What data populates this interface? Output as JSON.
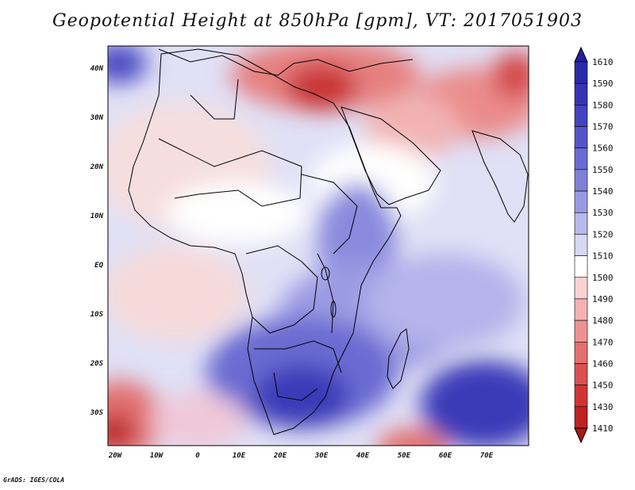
{
  "title": "Geopotential Height at 850hPa [gpm], VT: 2017051903",
  "credit": "GrADS: IGES/COLA",
  "latitudes": [
    "40N",
    "30N",
    "20N",
    "10N",
    "EQ",
    "10S",
    "20S",
    "30S"
  ],
  "longitudes": [
    "20W",
    "10W",
    "0",
    "10E",
    "20E",
    "30E",
    "40E",
    "50E",
    "60E",
    "70E"
  ],
  "colorbar": {
    "levels": [
      "1610",
      "1590",
      "1580",
      "1570",
      "1560",
      "1550",
      "1540",
      "1530",
      "1520",
      "1510",
      "1500",
      "1490",
      "1480",
      "1470",
      "1460",
      "1450",
      "1430",
      "1410"
    ],
    "colors": [
      "#2222a0",
      "#2a2aaa",
      "#3535b5",
      "#4343c0",
      "#5555c9",
      "#6a6ad2",
      "#8080da",
      "#9a9ae3",
      "#b8b8ec",
      "#d8d8f5",
      "#ffffff",
      "#f9d3d3",
      "#f3b2b2",
      "#ec9292",
      "#e47070",
      "#dc5050",
      "#cf3535",
      "#bd2222",
      "#a81818"
    ]
  },
  "map": {
    "land_color": "#ffffff",
    "outline_color": "#000000"
  }
}
